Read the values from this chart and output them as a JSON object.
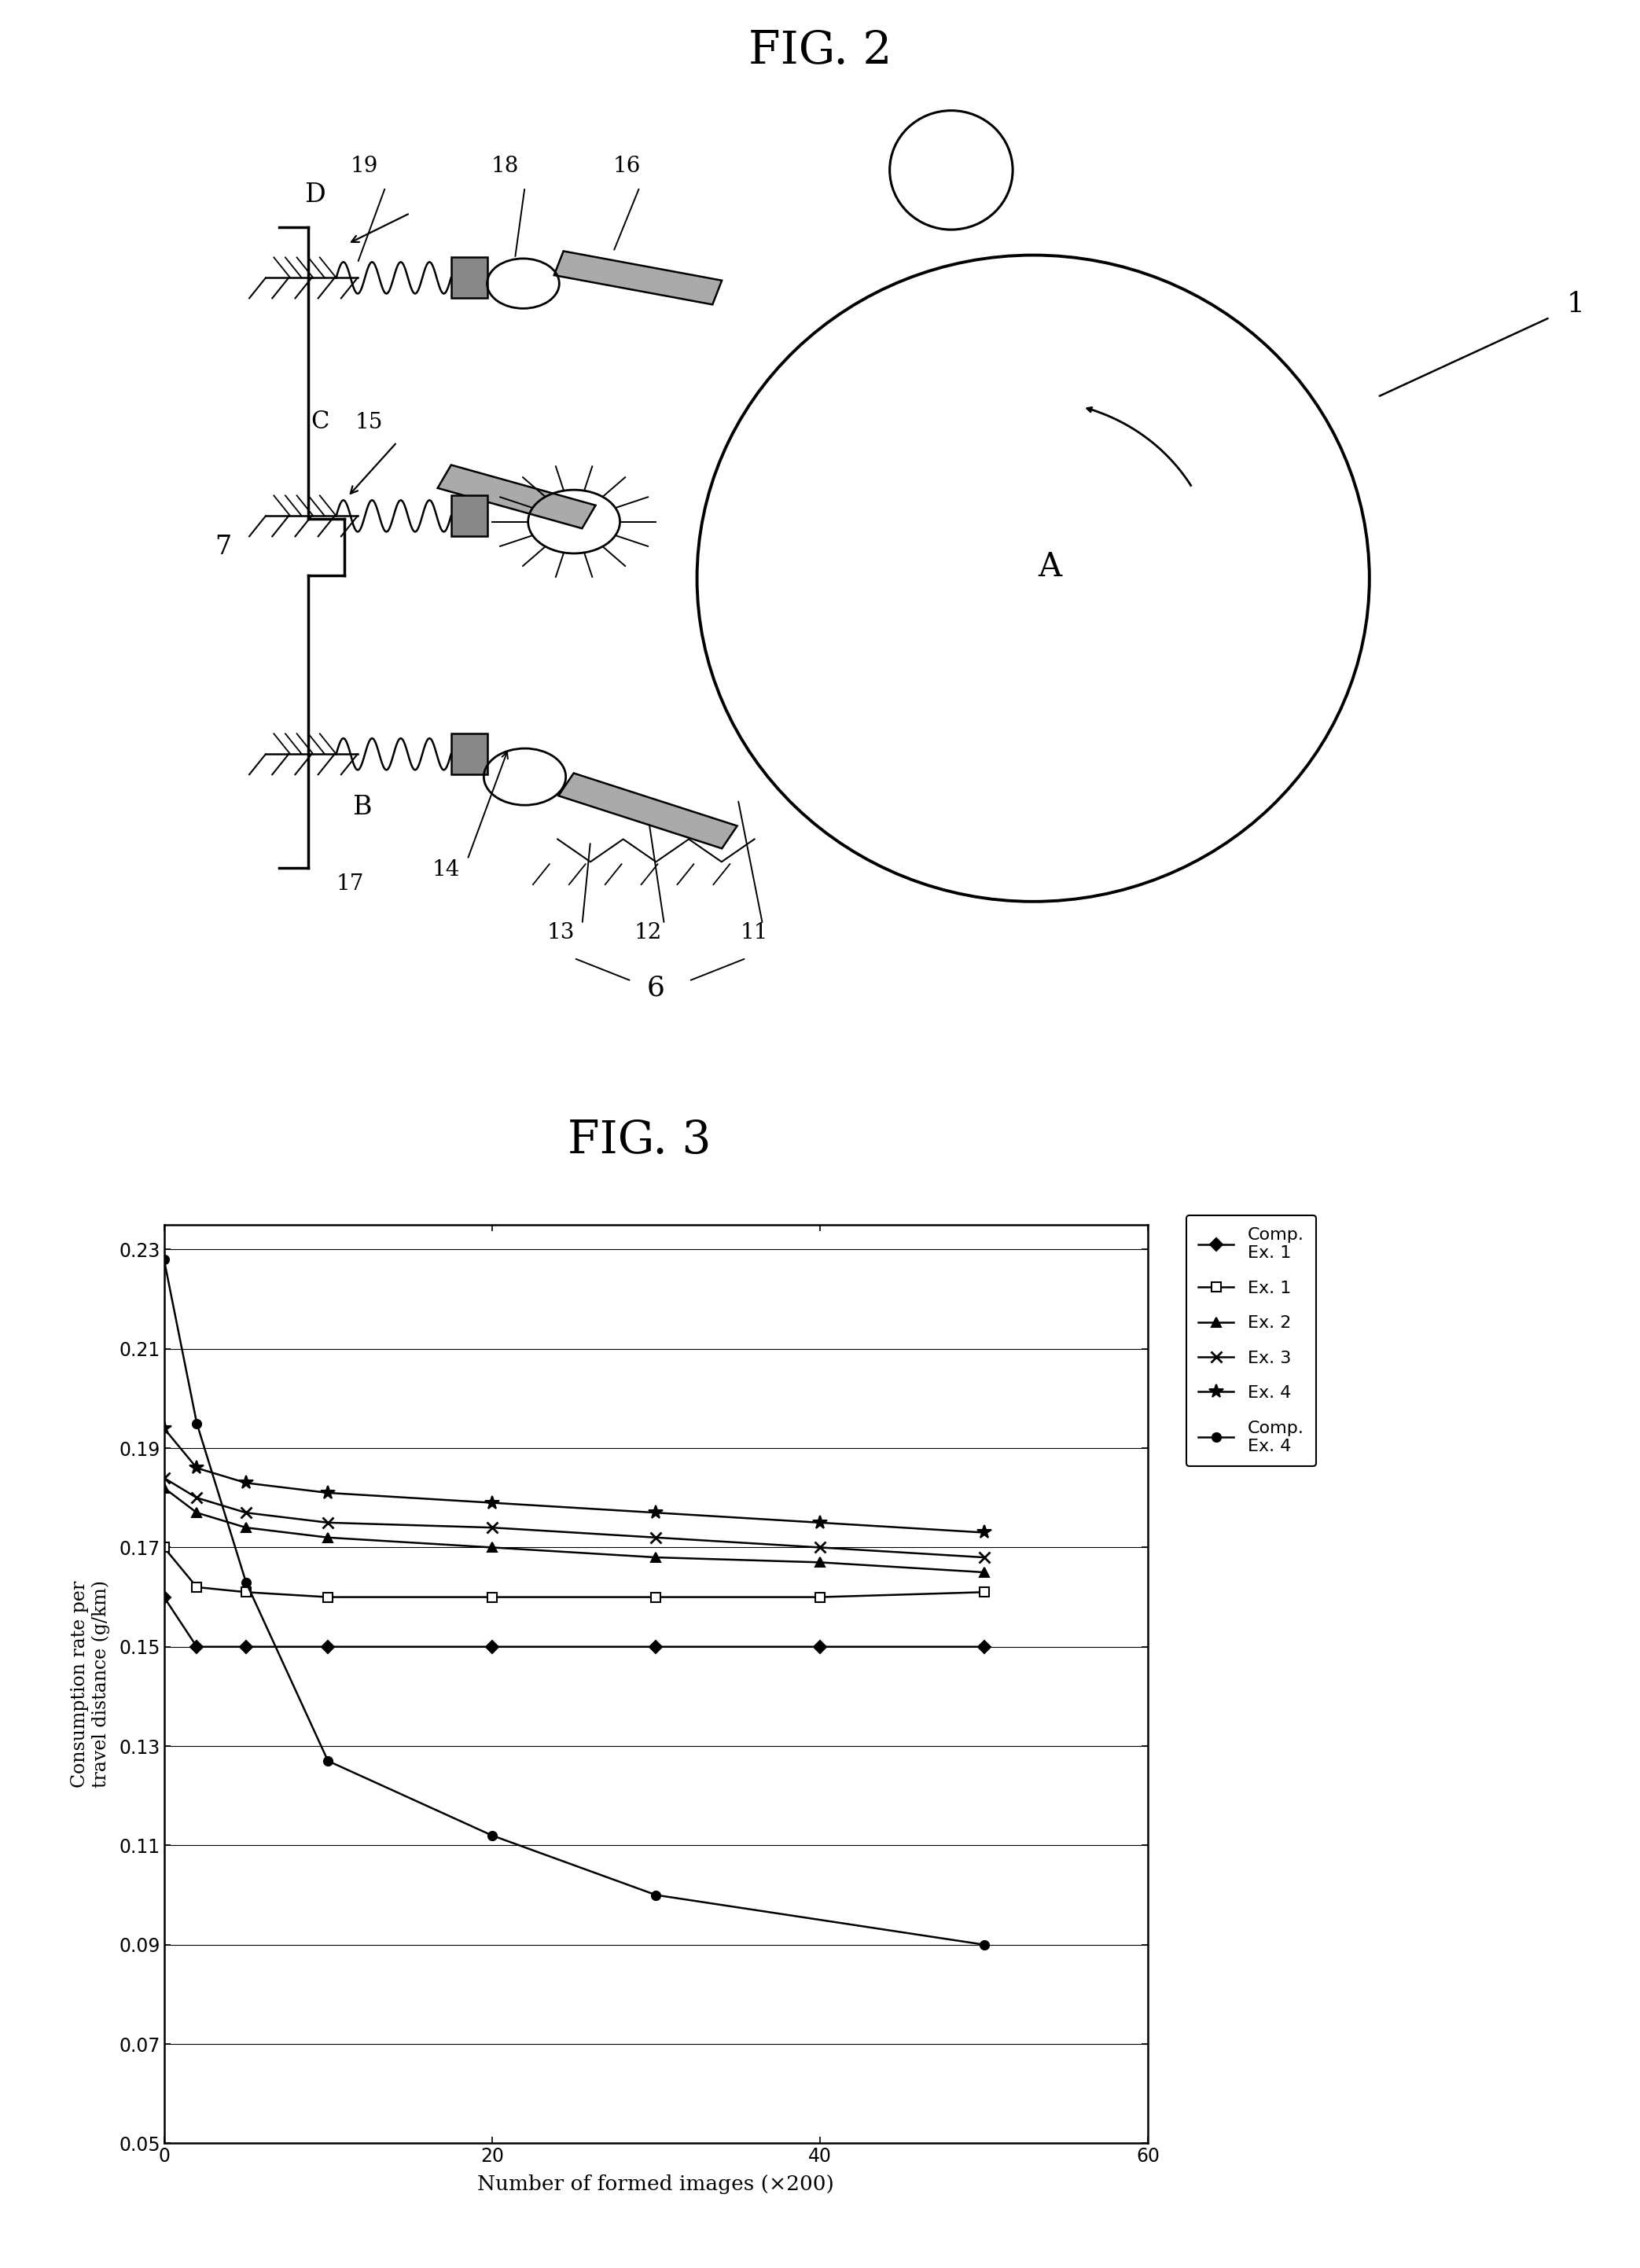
{
  "fig2_title": "FIG. 2",
  "fig3_title": "FIG. 3",
  "chart": {
    "xlabel": "Number of formed images (×200)",
    "ylabel": "Consumption rate per\ntravel distance (g/km)",
    "xlim": [
      0,
      60
    ],
    "ylim": [
      0.05,
      0.235
    ],
    "xticks": [
      0,
      20,
      40,
      60
    ],
    "yticks": [
      0.05,
      0.07,
      0.09,
      0.11,
      0.13,
      0.15,
      0.17,
      0.19,
      0.21,
      0.23
    ],
    "series": [
      {
        "label": "Comp.\nEx. 1",
        "marker": "D",
        "mfc": "black",
        "mec": "black",
        "ms": 8,
        "mew": 1.5,
        "lw": 1.8,
        "x": [
          0,
          2,
          5,
          10,
          20,
          30,
          40,
          50
        ],
        "y": [
          0.16,
          0.15,
          0.15,
          0.15,
          0.15,
          0.15,
          0.15,
          0.15
        ]
      },
      {
        "label": "Ex. 1",
        "marker": "s",
        "mfc": "white",
        "mec": "black",
        "ms": 8,
        "mew": 1.5,
        "lw": 1.8,
        "x": [
          0,
          2,
          5,
          10,
          20,
          30,
          40,
          50
        ],
        "y": [
          0.17,
          0.162,
          0.161,
          0.16,
          0.16,
          0.16,
          0.16,
          0.161
        ]
      },
      {
        "label": "Ex. 2",
        "marker": "^",
        "mfc": "black",
        "mec": "black",
        "ms": 8,
        "mew": 1.5,
        "lw": 1.8,
        "x": [
          0,
          2,
          5,
          10,
          20,
          30,
          40,
          50
        ],
        "y": [
          0.182,
          0.177,
          0.174,
          0.172,
          0.17,
          0.168,
          0.167,
          0.165
        ]
      },
      {
        "label": "Ex. 3",
        "marker": "x",
        "mfc": "black",
        "mec": "black",
        "ms": 10,
        "mew": 2.0,
        "lw": 1.8,
        "x": [
          0,
          2,
          5,
          10,
          20,
          30,
          40,
          50
        ],
        "y": [
          0.184,
          0.18,
          0.177,
          0.175,
          0.174,
          0.172,
          0.17,
          0.168
        ]
      },
      {
        "label": "Ex. 4",
        "marker": "*",
        "mfc": "black",
        "mec": "black",
        "ms": 13,
        "mew": 1.5,
        "lw": 1.8,
        "x": [
          0,
          2,
          5,
          10,
          20,
          30,
          40,
          50
        ],
        "y": [
          0.194,
          0.186,
          0.183,
          0.181,
          0.179,
          0.177,
          0.175,
          0.173
        ]
      },
      {
        "label": "Comp.\nEx. 4",
        "marker": "o",
        "mfc": "black",
        "mec": "black",
        "ms": 8,
        "mew": 1.5,
        "lw": 1.8,
        "x": [
          0,
          2,
          5,
          10,
          20,
          30,
          50
        ],
        "y": [
          0.228,
          0.195,
          0.163,
          0.127,
          0.112,
          0.1,
          0.09
        ]
      }
    ]
  }
}
